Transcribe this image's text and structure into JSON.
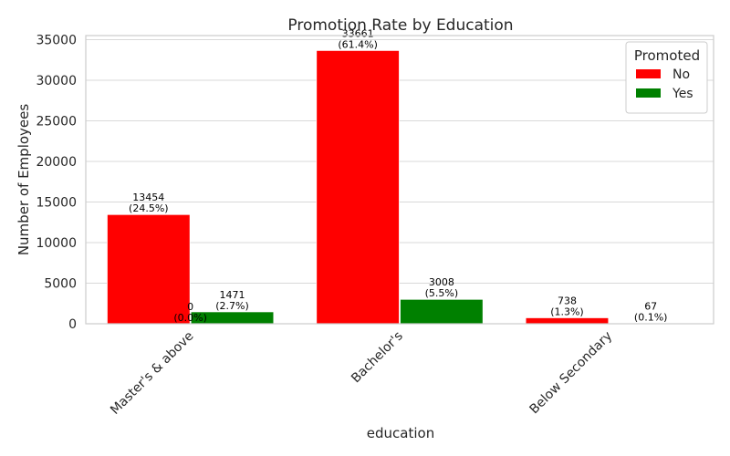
{
  "chart_data": {
    "type": "bar",
    "title": "Promotion Rate by Education",
    "xlabel": "education",
    "ylabel": "Number of Employees",
    "categories": [
      "Master's & above",
      "Bachelor's",
      "Below Secondary"
    ],
    "series": [
      {
        "name": "No",
        "color": "#ff0000",
        "values": [
          13454,
          33661,
          738
        ],
        "labels": [
          "13454\n(24.5%)",
          "33661\n(61.4%)",
          "738\n(1.3%)"
        ]
      },
      {
        "name": "Yes",
        "color": "#008000",
        "values": [
          1471,
          3008,
          67
        ],
        "labels": [
          "1471\n(2.7%)",
          "3008\n(5.5%)",
          "67\n(0.1%)"
        ]
      }
    ],
    "extra_labels": [
      {
        "category": "Master's & above",
        "text": "0\n(0.0%)"
      }
    ],
    "ylim": [
      0,
      35500
    ],
    "yticks": [
      0,
      5000,
      10000,
      15000,
      20000,
      25000,
      30000,
      35000
    ],
    "grid": true,
    "legend": {
      "title": "Promoted",
      "position": "top-right"
    }
  }
}
